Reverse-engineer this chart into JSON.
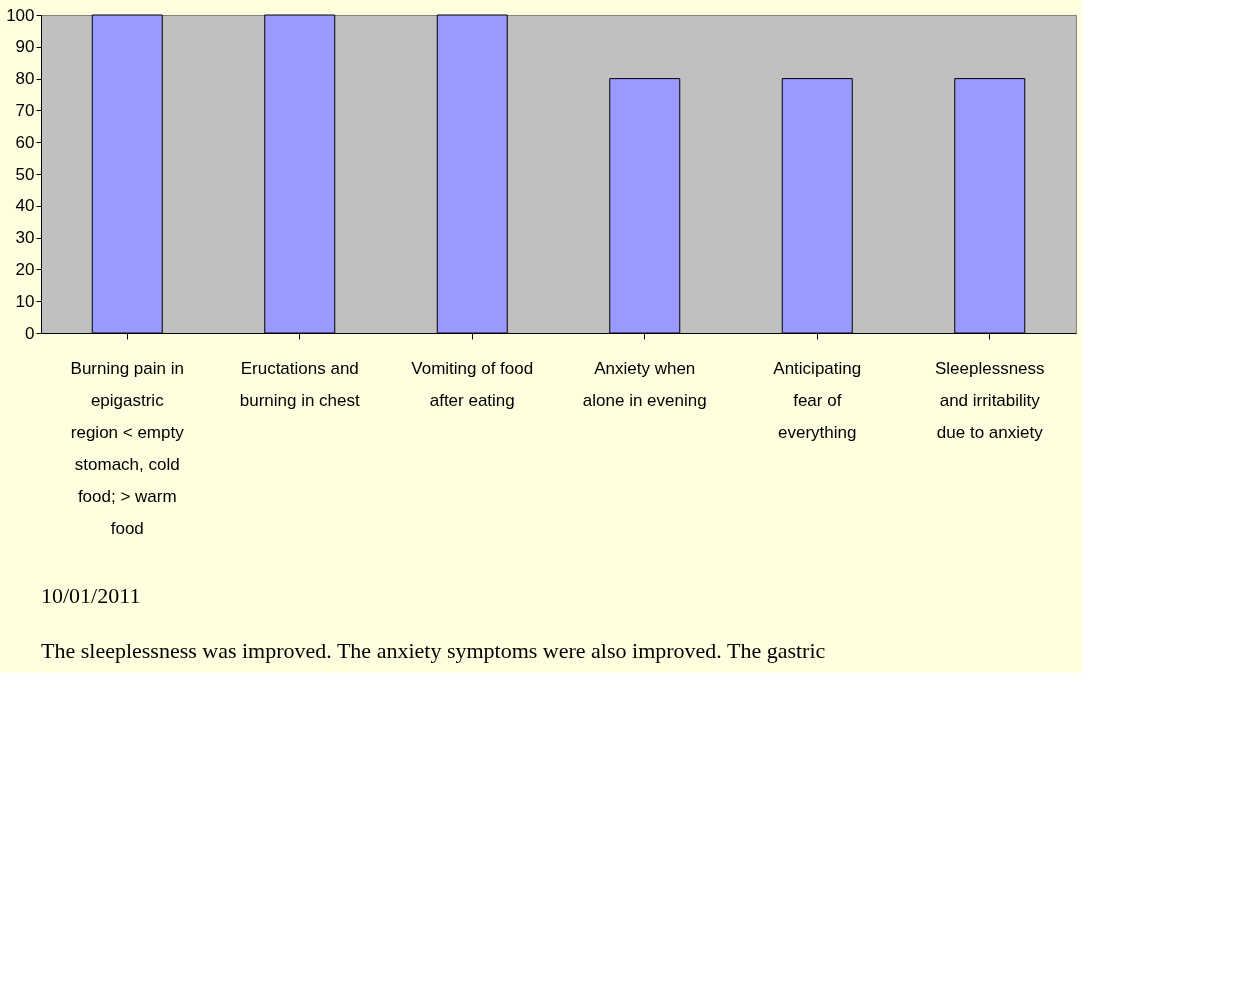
{
  "chart_data": {
    "type": "bar",
    "categories": [
      "Burning pain in epigastric region < empty stomach, cold food; > warm food",
      "Eructations and burning in chest",
      "Vomiting of food after eating",
      "Anxiety when alone in evening",
      "Anticipating fear of everything",
      "Sleeplessness and irritability due to anxiety"
    ],
    "values": [
      100,
      100,
      100,
      80,
      80,
      80
    ],
    "color": "#9999ff",
    "ylim": [
      0,
      100
    ],
    "yticks": [
      0,
      10,
      20,
      30,
      40,
      50,
      60,
      70,
      80,
      90,
      100
    ],
    "grid": false,
    "annotations": [
      "10/01/2011",
      "The sleeplessness was improved. The anxiety symptoms were also improved. The gastric"
    ]
  }
}
